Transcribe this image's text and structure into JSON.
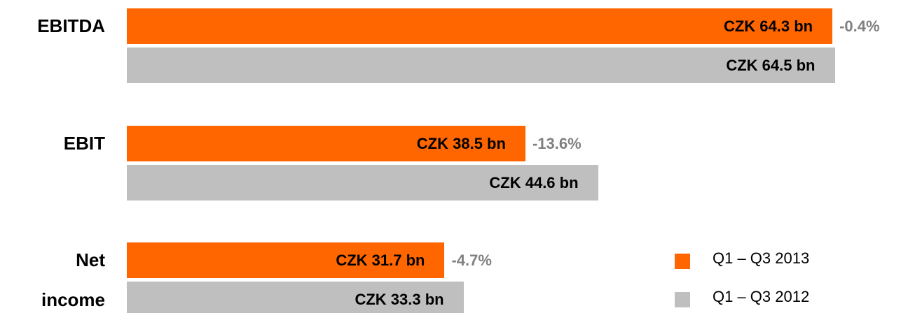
{
  "chart_data": {
    "type": "bar",
    "orientation": "horizontal",
    "categories": [
      "EBITDA",
      "EBIT",
      "Net income"
    ],
    "series": [
      {
        "name": "Q1 – Q3 2013",
        "color": "#ff6600",
        "values": [
          64.3,
          38.5,
          31.7
        ],
        "value_labels": [
          "CZK 64.3 bn",
          "CZK 38.5 bn",
          "CZK 31.7 bn"
        ]
      },
      {
        "name": "Q1 – Q3 2012",
        "color": "#bfbfbf",
        "values": [
          64.5,
          44.6,
          33.3
        ],
        "value_labels": [
          "CZK 64.5 bn",
          "CZK 44.6 bn",
          "CZK 33.3 bn"
        ]
      }
    ],
    "annotations": [
      "-0.4%",
      "-13.6%",
      "-4.7%"
    ],
    "xlim": [
      5,
      65
    ],
    "legend": "bottom-right"
  }
}
